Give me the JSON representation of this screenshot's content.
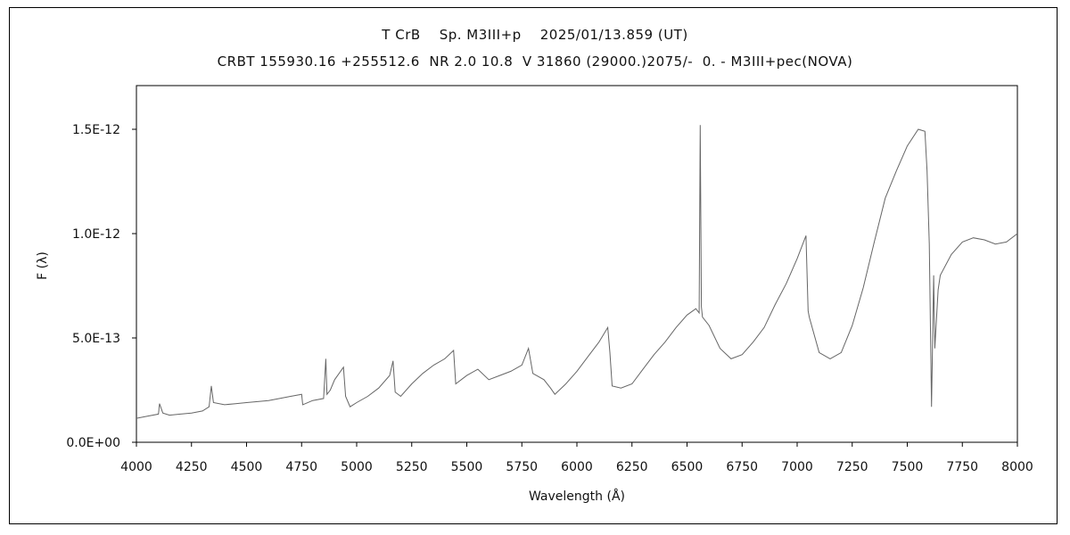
{
  "chart_data": {
    "type": "line",
    "title": "T CrB    Sp. M3III+p    2025/01/13.859 (UT)",
    "subtitle": "CRBT 155930.16 +255512.6  NR 2.0 10.8  V 31860 (29000.)2075/-  0. - M3III+pec(NOVA)",
    "xlabel": "Wavelength (Å)",
    "ylabel": "F (λ)",
    "xlim": [
      4000,
      8000
    ],
    "ylim": [
      0,
      1.5e-12
    ],
    "x_ticks": [
      4000,
      4250,
      4500,
      4750,
      5000,
      5250,
      5500,
      5750,
      6000,
      6250,
      6500,
      6750,
      7000,
      7250,
      7500,
      7750,
      8000
    ],
    "x_tick_labels": [
      "4000",
      "4250",
      "4500",
      "4750",
      "5000",
      "5250",
      "5500",
      "5750",
      "6000",
      "6250",
      "6500",
      "6750",
      "7000",
      "7250",
      "7500",
      "7750",
      "8000"
    ],
    "y_ticks": [
      0,
      5e-13,
      1e-12,
      1.5e-12
    ],
    "y_tick_labels": [
      "0.0E+00",
      "5.0E-13",
      "1.0E-12",
      "1.5E-12"
    ],
    "grid": false,
    "line_color": "#666666",
    "series": [
      {
        "name": "",
        "x": [
          4000,
          4050,
          4100,
          4105,
          4120,
          4150,
          4200,
          4250,
          4300,
          4330,
          4340,
          4350,
          4400,
          4450,
          4500,
          4550,
          4600,
          4650,
          4700,
          4750,
          4755,
          4800,
          4850,
          4860,
          4865,
          4880,
          4900,
          4940,
          4950,
          4970,
          5000,
          5050,
          5100,
          5150,
          5165,
          5175,
          5200,
          5250,
          5300,
          5350,
          5400,
          5440,
          5450,
          5500,
          5550,
          5600,
          5650,
          5700,
          5750,
          5780,
          5800,
          5850,
          5880,
          5900,
          5950,
          6000,
          6050,
          6100,
          6140,
          6150,
          6160,
          6200,
          6250,
          6300,
          6350,
          6400,
          6450,
          6500,
          6540,
          6555,
          6560,
          6565,
          6570,
          6600,
          6650,
          6700,
          6750,
          6800,
          6850,
          6900,
          6950,
          7000,
          7040,
          7050,
          7055,
          7100,
          7150,
          7200,
          7250,
          7300,
          7350,
          7400,
          7450,
          7500,
          7550,
          7580,
          7590,
          7600,
          7610,
          7620,
          7625,
          7640,
          7650,
          7700,
          7750,
          7800,
          7850,
          7900,
          7950,
          8000
        ],
        "y": [
          1.15e-13,
          1.25e-13,
          1.35e-13,
          1.85e-13,
          1.4e-13,
          1.3e-13,
          1.35e-13,
          1.4e-13,
          1.5e-13,
          1.7e-13,
          2.7e-13,
          1.9e-13,
          1.8e-13,
          1.85e-13,
          1.9e-13,
          1.95e-13,
          2e-13,
          2.1e-13,
          2.2e-13,
          2.3e-13,
          1.8e-13,
          2e-13,
          2.1e-13,
          4e-13,
          2.3e-13,
          2.5e-13,
          3e-13,
          3.6e-13,
          2.2e-13,
          1.7e-13,
          1.9e-13,
          2.2e-13,
          2.6e-13,
          3.2e-13,
          3.9e-13,
          2.4e-13,
          2.2e-13,
          2.8e-13,
          3.3e-13,
          3.7e-13,
          4e-13,
          4.4e-13,
          2.8e-13,
          3.2e-13,
          3.5e-13,
          3e-13,
          3.2e-13,
          3.4e-13,
          3.7e-13,
          4.5e-13,
          3.3e-13,
          3e-13,
          2.6e-13,
          2.3e-13,
          2.8e-13,
          3.4e-13,
          4.1e-13,
          4.8e-13,
          5.5e-13,
          4.3e-13,
          2.7e-13,
          2.6e-13,
          2.8e-13,
          3.5e-13,
          4.2e-13,
          4.8e-13,
          5.5e-13,
          6.1e-13,
          6.4e-13,
          6.2e-13,
          1.52e-12,
          6.5e-13,
          6e-13,
          5.6e-13,
          4.5e-13,
          4e-13,
          4.2e-13,
          4.8e-13,
          5.5e-13,
          6.6e-13,
          7.6e-13,
          8.8e-13,
          9.9e-13,
          6.3e-13,
          6e-13,
          4.3e-13,
          4e-13,
          4.3e-13,
          5.6e-13,
          7.4e-13,
          9.6e-13,
          1.17e-12,
          1.3e-12,
          1.42e-12,
          1.5e-12,
          1.49e-12,
          1.3e-12,
          9.5e-13,
          1.7e-13,
          8e-13,
          4.5e-13,
          7.3e-13,
          8e-13,
          9e-13,
          9.6e-13,
          9.8e-13,
          9.7e-13,
          9.5e-13,
          9.6e-13,
          1e-12
        ]
      }
    ]
  }
}
